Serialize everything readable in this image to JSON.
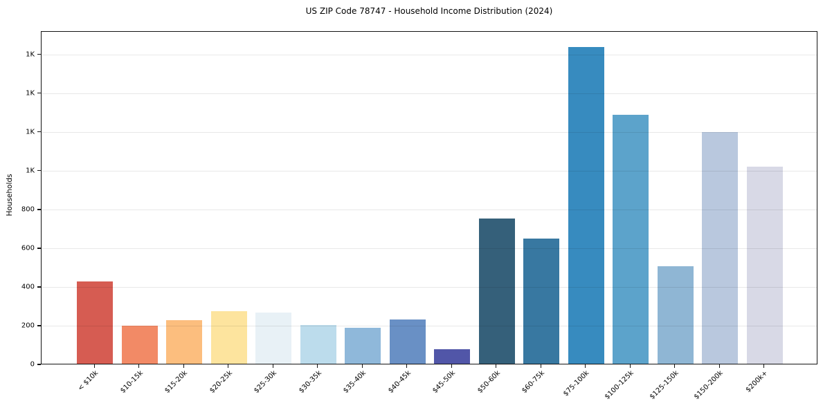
{
  "figure": {
    "title": "US ZIP Code 78747 - Household Income Distribution (2024)"
  },
  "chart_data": {
    "type": "bar",
    "title": "US ZIP Code 78747 - Household Income Distribution (2024)",
    "xlabel": "",
    "ylabel": "Households",
    "categories": [
      "< $10k",
      "$10-15k",
      "$15-20k",
      "$20-25k",
      "$25-30k",
      "$30-35k",
      "$35-40k",
      "$40-45k",
      "$45-50k",
      "$50-60k",
      "$60-75k",
      "$75-100k",
      "$100-125k",
      "$125-150k",
      "$150-200k",
      "$200k+"
    ],
    "values": [
      425,
      197,
      225,
      273,
      265,
      200,
      185,
      228,
      75,
      750,
      645,
      1635,
      1285,
      503,
      1196,
      1017
    ],
    "bar_colors": [
      "#d65c52",
      "#f28a66",
      "#fcbe7e",
      "#fde49e",
      "#e8f1f6",
      "#bcdcec",
      "#8fb8da",
      "#6990c5",
      "#5156a8",
      "#35607a",
      "#3878a1",
      "#378bbf",
      "#5ca3cb",
      "#8fb6d4",
      "#b9c8de",
      "#d8d9e6"
    ],
    "ylim": [
      0,
      1720
    ],
    "yticks": [
      {
        "value": 0,
        "label": "0"
      },
      {
        "value": 200,
        "label": "200"
      },
      {
        "value": 400,
        "label": "400"
      },
      {
        "value": 600,
        "label": "600"
      },
      {
        "value": 800,
        "label": "800"
      },
      {
        "value": 1000,
        "label": "1K"
      },
      {
        "value": 1200,
        "label": "1K"
      },
      {
        "value": 1400,
        "label": "1K"
      },
      {
        "value": 1600,
        "label": "1K"
      }
    ],
    "grid": "horizontal-only, drawn above bars, light gray",
    "legend_position": "none",
    "background_color": "#ffffff",
    "spine_color": "#121212",
    "bar_width_fraction": 0.8
  }
}
